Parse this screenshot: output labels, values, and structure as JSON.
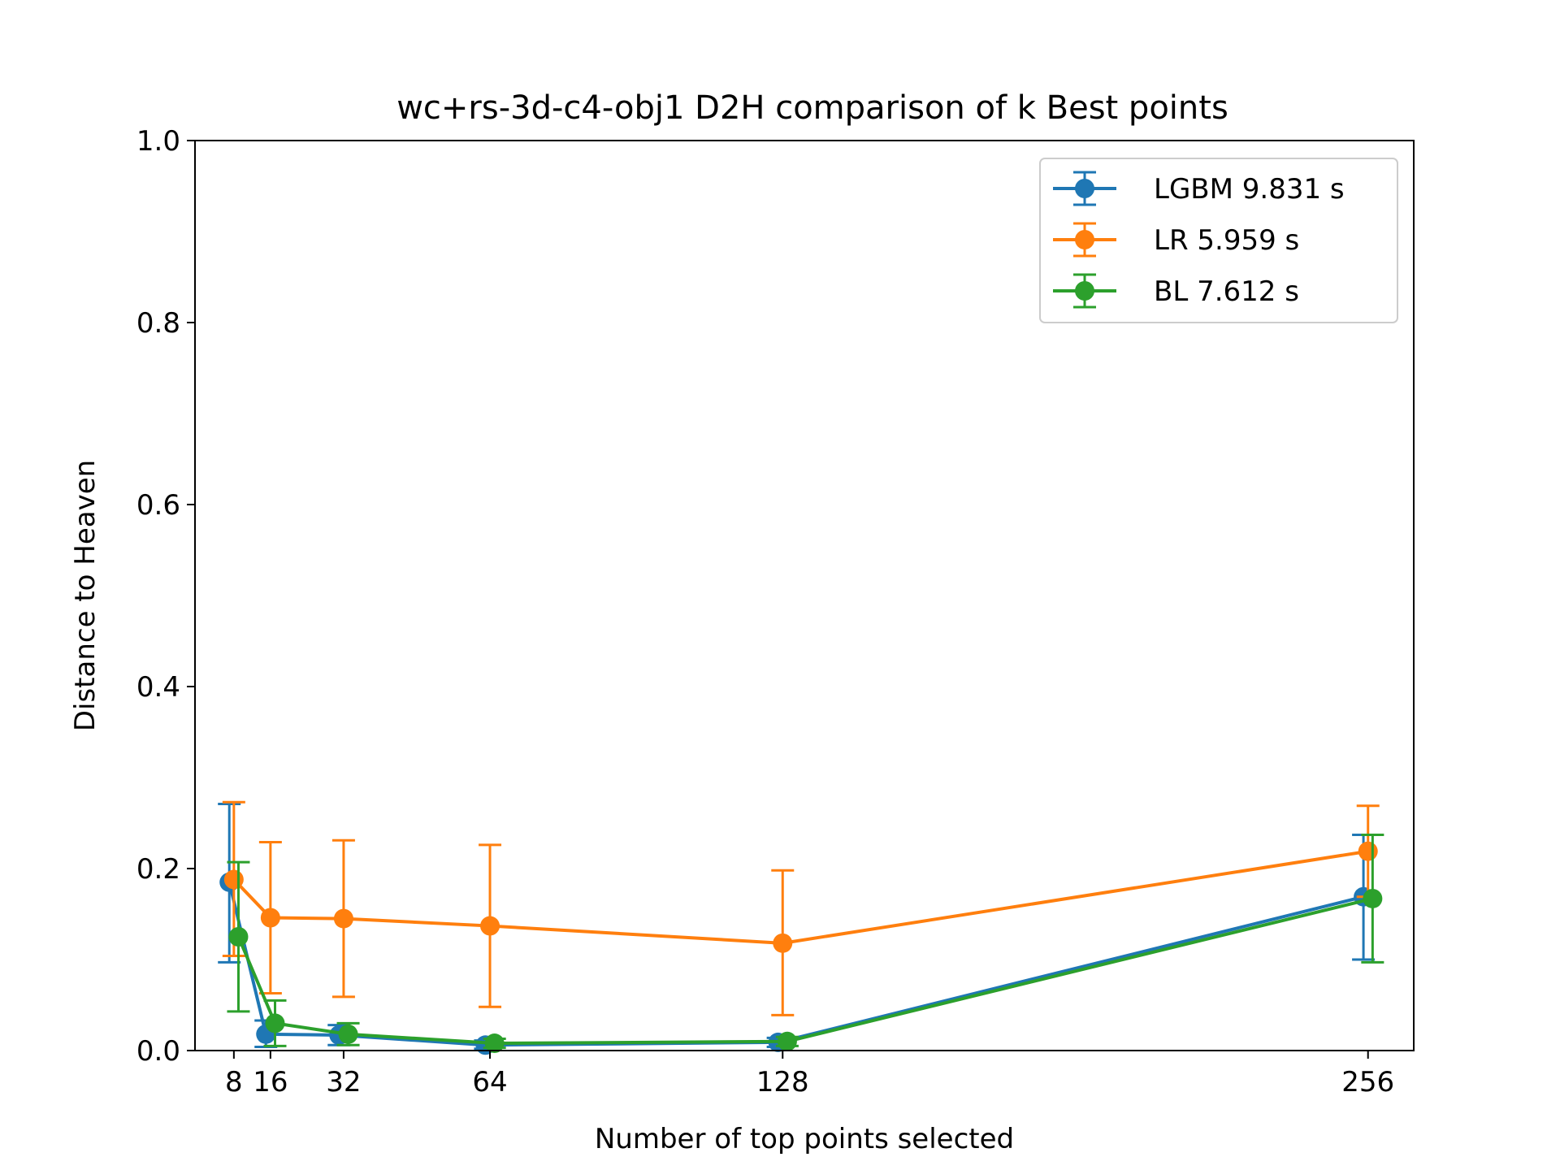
{
  "chart_data": {
    "type": "line",
    "title": "wc+rs-3d-c4-obj1 D2H comparison of k Best points",
    "xlabel": "Number of top points selected",
    "ylabel": "Distance to Heaven",
    "ylim": [
      0,
      1.0
    ],
    "xlim": [
      -0.5,
      266
    ],
    "x_ticks": [
      8,
      16,
      32,
      64,
      128,
      256
    ],
    "x_tick_labels": [
      "8",
      "16",
      "32",
      "64",
      "128",
      "256"
    ],
    "y_ticks": [
      0.0,
      0.2,
      0.4,
      0.6,
      0.8,
      1.0
    ],
    "y_tick_labels": [
      "0.0",
      "0.2",
      "0.4",
      "0.6",
      "0.8",
      "1.0"
    ],
    "grid": false,
    "legend_position": "top-right",
    "series": [
      {
        "name": "LGBM 9.831 s",
        "color": "#1f77b4",
        "x": [
          7,
          15,
          31,
          63,
          127,
          255
        ],
        "y": [
          0.185,
          0.018,
          0.017,
          0.006,
          0.009,
          0.169
        ],
        "err_low": [
          0.097,
          0.004,
          0.006,
          0.002,
          0.004,
          0.1
        ],
        "err_high": [
          0.271,
          0.033,
          0.028,
          0.011,
          0.014,
          0.237
        ]
      },
      {
        "name": "LR 5.959 s",
        "color": "#ff7f0e",
        "x": [
          8,
          16,
          32,
          64,
          128,
          256
        ],
        "y": [
          0.188,
          0.146,
          0.145,
          0.137,
          0.118,
          0.219
        ],
        "err_low": [
          0.104,
          0.063,
          0.059,
          0.048,
          0.039,
          0.169
        ],
        "err_high": [
          0.273,
          0.229,
          0.231,
          0.226,
          0.198,
          0.269
        ]
      },
      {
        "name": "BL 7.612 s",
        "color": "#2ca02c",
        "x": [
          9,
          17,
          33,
          65,
          129,
          257
        ],
        "y": [
          0.125,
          0.03,
          0.018,
          0.008,
          0.01,
          0.167
        ],
        "err_low": [
          0.043,
          0.005,
          0.006,
          0.003,
          0.005,
          0.097
        ],
        "err_high": [
          0.207,
          0.055,
          0.03,
          0.013,
          0.015,
          0.237
        ]
      }
    ]
  }
}
